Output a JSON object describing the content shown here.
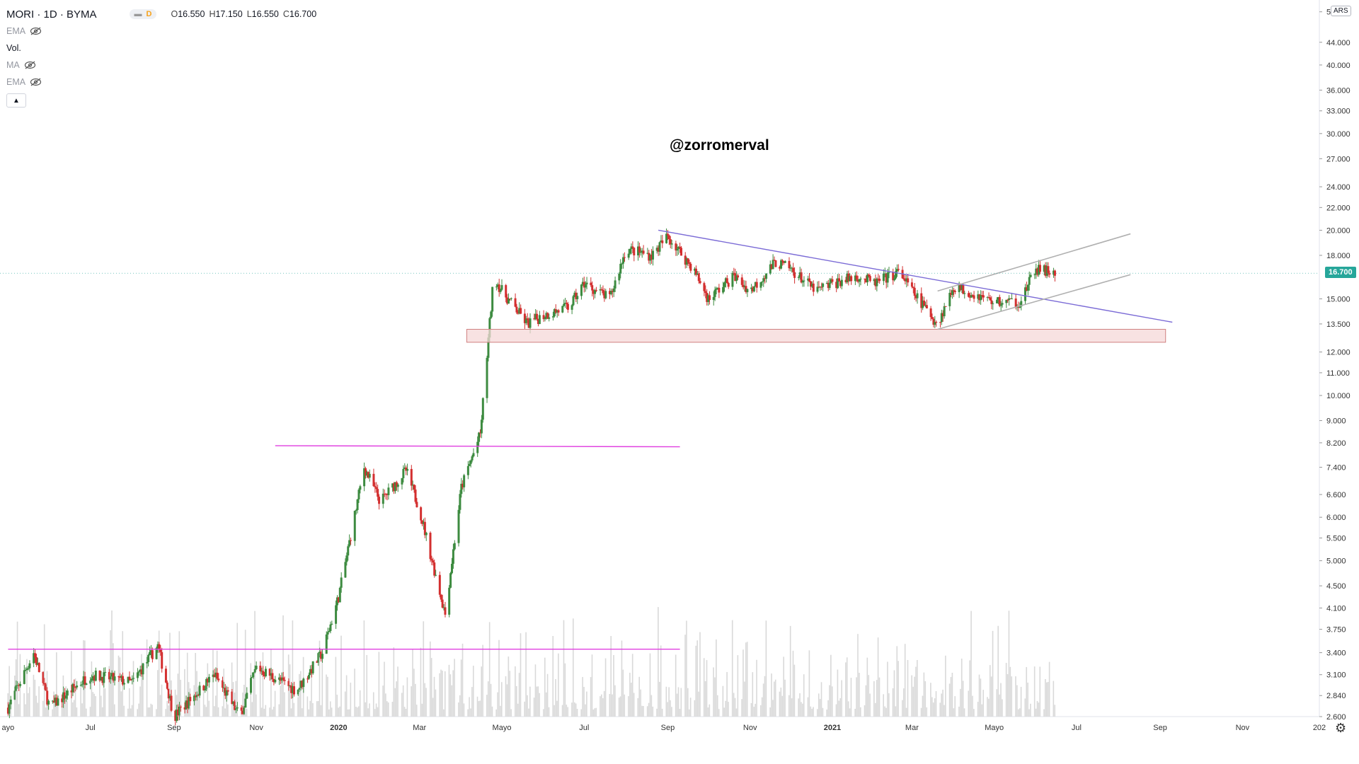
{
  "header": {
    "symbol": "MORI · 1D · BYMA",
    "interval_badge": "D",
    "ohlc": {
      "o_label": "O",
      "o": "16.550",
      "h_label": "H",
      "h": "17.150",
      "l_label": "L",
      "l": "16.550",
      "c_label": "C",
      "c": "16.700"
    },
    "indicators": [
      {
        "label": "EMA",
        "hidden": true
      },
      {
        "label": "Vol.",
        "hidden": false
      },
      {
        "label": "MA",
        "hidden": true
      },
      {
        "label": "EMA",
        "hidden": true
      }
    ]
  },
  "watermark": "@zorromerval",
  "currency": "ARS",
  "last_price": "16.700",
  "colors": {
    "up": "#26a69a",
    "down": "#ef5350",
    "candle_up": "#3d8b40",
    "candle_down": "#d32f2f",
    "trend": "#7b6bd6",
    "channel": "#b0b0b0",
    "hline": "#e040e0",
    "zone_fill": "#f6d8d8",
    "zone_stroke": "#d08080",
    "volume": "#d9d9d9"
  },
  "chart_data": {
    "type": "candlestick",
    "y_scale": "log",
    "ylim": [
      2.6,
      51.0
    ],
    "y_ticks": [
      "50.000",
      "44.000",
      "40.000",
      "36.000",
      "33.000",
      "30.000",
      "27.000",
      "24.000",
      "22.000",
      "20.000",
      "18.000",
      "16.700",
      "15.000",
      "13.500",
      "12.000",
      "11.000",
      "10.000",
      "9.000",
      "8.200",
      "7.400",
      "6.600",
      "6.000",
      "5.500",
      "5.000",
      "4.500",
      "4.100",
      "3.750",
      "3.400",
      "3.100",
      "2.840",
      "2.600"
    ],
    "x_ticks": [
      "ayo",
      "Jul",
      "Sep",
      "Nov",
      "2020",
      "Mar",
      "Mayo",
      "Jul",
      "Sep",
      "Nov",
      "2021",
      "Mar",
      "Mayo",
      "Jul",
      "Sep",
      "Nov",
      "202"
    ],
    "x_range": [
      "2019-05",
      "2021-12"
    ],
    "price_path": [
      {
        "date": "2019-05",
        "close": 2.7
      },
      {
        "date": "2019-05-20",
        "close": 3.4
      },
      {
        "date": "2019-06",
        "close": 2.7
      },
      {
        "date": "2019-07",
        "close": 3.1
      },
      {
        "date": "2019-08",
        "close": 3.0
      },
      {
        "date": "2019-08-20",
        "close": 3.5
      },
      {
        "date": "2019-09",
        "close": 2.6
      },
      {
        "date": "2019-10",
        "close": 3.1
      },
      {
        "date": "2019-10-20",
        "close": 2.6
      },
      {
        "date": "2019-11",
        "close": 3.2
      },
      {
        "date": "2019-12",
        "close": 2.9
      },
      {
        "date": "2019-12-20",
        "close": 3.4
      },
      {
        "date": "2020-01",
        "close": 4.3
      },
      {
        "date": "2020-01-20",
        "close": 7.4
      },
      {
        "date": "2020-02",
        "close": 6.4
      },
      {
        "date": "2020-02-20",
        "close": 7.3
      },
      {
        "date": "2020-03",
        "close": 6.2
      },
      {
        "date": "2020-03-20",
        "close": 4.0
      },
      {
        "date": "2020-04",
        "close": 6.8
      },
      {
        "date": "2020-04-15",
        "close": 8.5
      },
      {
        "date": "2020-04-25",
        "close": 16.5
      },
      {
        "date": "2020-05",
        "close": 15.5
      },
      {
        "date": "2020-05-20",
        "close": 13.5
      },
      {
        "date": "2020-06",
        "close": 14.0
      },
      {
        "date": "2020-06-20",
        "close": 14.5
      },
      {
        "date": "2020-07",
        "close": 16.0
      },
      {
        "date": "2020-07-20",
        "close": 15.0
      },
      {
        "date": "2020-08",
        "close": 18.5
      },
      {
        "date": "2020-08-20",
        "close": 18.0
      },
      {
        "date": "2020-09",
        "close": 19.5
      },
      {
        "date": "2020-09-20",
        "close": 17.0
      },
      {
        "date": "2020-10",
        "close": 15.0
      },
      {
        "date": "2020-10-20",
        "close": 16.5
      },
      {
        "date": "2020-11",
        "close": 15.5
      },
      {
        "date": "2020-11-20",
        "close": 17.5
      },
      {
        "date": "2020-12",
        "close": 17.0
      },
      {
        "date": "2020-12-20",
        "close": 15.5
      },
      {
        "date": "2021-01",
        "close": 16.0
      },
      {
        "date": "2021-01-20",
        "close": 16.5
      },
      {
        "date": "2021-02",
        "close": 16.0
      },
      {
        "date": "2021-02-20",
        "close": 16.8
      },
      {
        "date": "2021-03",
        "close": 15.5
      },
      {
        "date": "2021-03-20",
        "close": 13.5
      },
      {
        "date": "2021-04",
        "close": 15.8
      },
      {
        "date": "2021-04-20",
        "close": 15.2
      },
      {
        "date": "2021-05",
        "close": 14.8
      },
      {
        "date": "2021-05-20",
        "close": 14.8
      },
      {
        "date": "2021-06",
        "close": 17.0
      },
      {
        "date": "2021-06-15",
        "close": 16.7
      }
    ],
    "drawings": {
      "descending_trendline": {
        "from": {
          "date": "2020-08-25",
          "price": 20.0
        },
        "to": {
          "date": "2021-09-10",
          "price": 13.6
        }
      },
      "channel_upper": {
        "from": {
          "date": "2021-03-20",
          "price": 15.5
        },
        "to": {
          "date": "2021-08-10",
          "price": 19.7
        }
      },
      "channel_lower": {
        "from": {
          "date": "2021-03-20",
          "price": 13.2
        },
        "to": {
          "date": "2021-08-10",
          "price": 16.6
        }
      },
      "support_zone": {
        "from_date": "2020-04-05",
        "to_date": "2021-09-05",
        "low": 12.5,
        "high": 13.2
      },
      "resistance_hline": {
        "from_date": "2019-11-15",
        "to_date": "2020-09-10",
        "price": 8.1
      },
      "support_hline": {
        "from_date": "2019-05",
        "to_date": "2020-09-10",
        "price": 3.45
      }
    }
  }
}
